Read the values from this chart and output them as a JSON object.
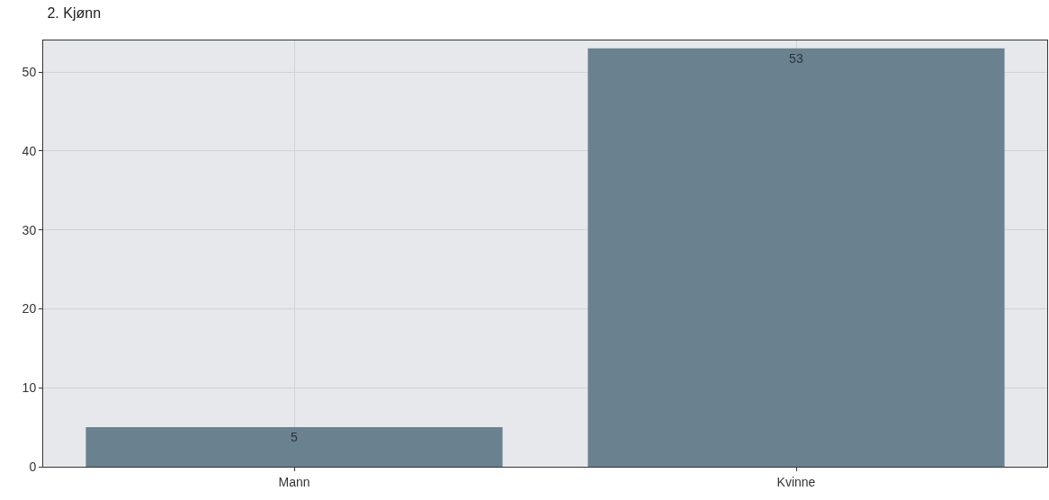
{
  "chart_data": {
    "type": "bar",
    "title": "2. Kjønn",
    "categories": [
      "Mann",
      "Kvinne"
    ],
    "values": [
      5,
      53
    ],
    "color": "#6a8290",
    "ylim": [
      0,
      54
    ],
    "yticks": [
      0,
      10,
      20,
      30,
      40,
      50
    ],
    "grid": true,
    "data_labels": true
  }
}
